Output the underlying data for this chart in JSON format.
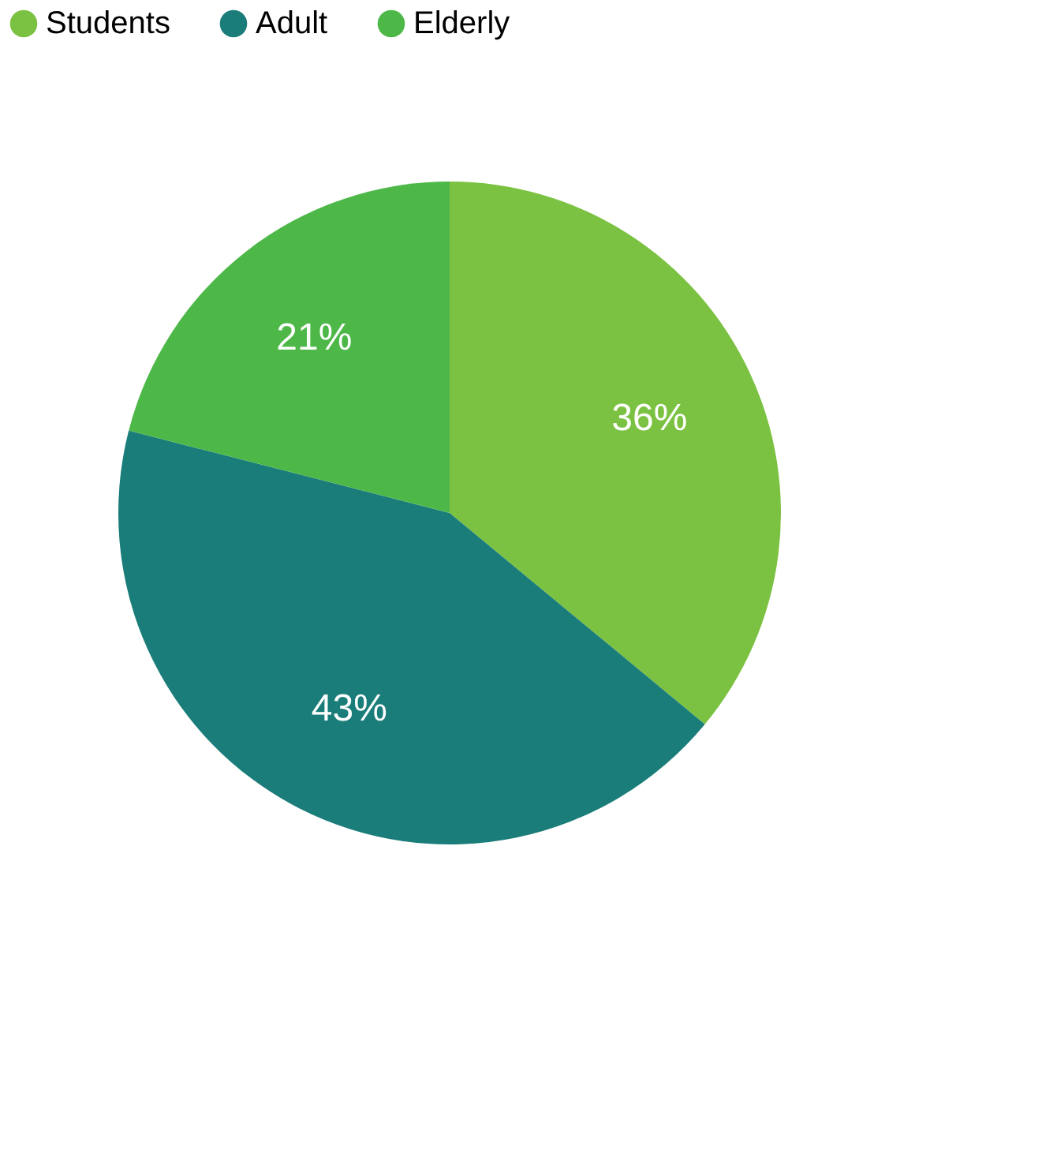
{
  "chart_data": {
    "type": "pie",
    "categories": [
      "Students",
      "Adult",
      "Elderly"
    ],
    "values": [
      36,
      43,
      21
    ],
    "colors": [
      "#7cc242",
      "#1a7d7a",
      "#4db848"
    ],
    "value_labels": [
      "36%",
      "43%",
      "21%"
    ],
    "legend": "top"
  }
}
